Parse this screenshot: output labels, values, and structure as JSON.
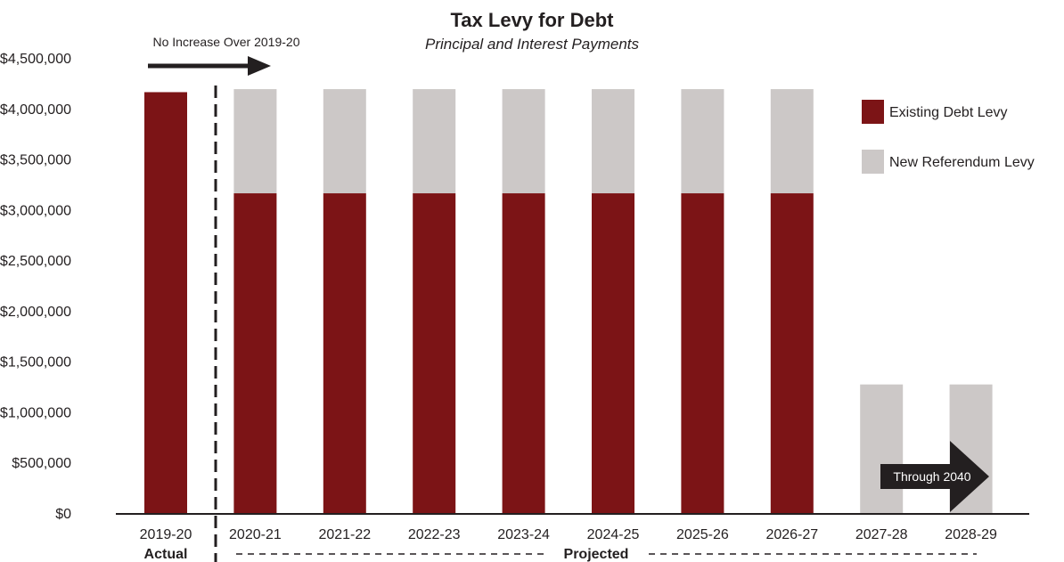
{
  "chart_data": {
    "type": "bar",
    "stacked": true,
    "title": "Tax Levy for Debt",
    "subtitle": "Principal and Interest Payments",
    "categories": [
      "2019-20",
      "2020-21",
      "2021-22",
      "2022-23",
      "2023-24",
      "2024-25",
      "2025-26",
      "2026-27",
      "2027-28",
      "2028-29"
    ],
    "series": [
      {
        "name": "Existing Debt Levy",
        "color": "#7c1416",
        "values": [
          4170000,
          3170000,
          3170000,
          3170000,
          3170000,
          3170000,
          3170000,
          3170000,
          0,
          0
        ]
      },
      {
        "name": "New Referendum Levy",
        "color": "#ccc8c7",
        "values": [
          0,
          1030000,
          1030000,
          1030000,
          1030000,
          1030000,
          1030000,
          1030000,
          1280000,
          1280000
        ]
      }
    ],
    "ylim": [
      0,
      4500000
    ],
    "yticks": [
      0,
      500000,
      1000000,
      1500000,
      2000000,
      2500000,
      3000000,
      3500000,
      4000000,
      4500000
    ],
    "ytick_labels": [
      "$0",
      "$500,000",
      "$1,000,000",
      "$1,500,000",
      "$2,000,000",
      "$2,500,000",
      "$3,000,000",
      "$3,500,000",
      "$4,000,000",
      "$4,500,000"
    ],
    "grid": false,
    "legend_position": "top-right",
    "group_labels": {
      "actual": "Actual",
      "projected": "Projected"
    },
    "annotations": {
      "no_increase": "No Increase Over 2019-20",
      "through": "Through 2040"
    }
  }
}
